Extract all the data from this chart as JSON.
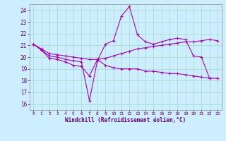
{
  "xlabel": "Windchill (Refroidissement éolien,°C)",
  "bg_color": "#cceeff",
  "grid_color": "#aaddcc",
  "line_color": "#aa00aa",
  "xlim": [
    -0.5,
    23.5
  ],
  "ylim": [
    15.5,
    24.5
  ],
  "yticks": [
    16,
    17,
    18,
    19,
    20,
    21,
    22,
    23,
    24
  ],
  "xticks": [
    0,
    1,
    2,
    3,
    4,
    5,
    6,
    7,
    8,
    9,
    10,
    11,
    12,
    13,
    14,
    15,
    16,
    17,
    18,
    19,
    20,
    21,
    22,
    23
  ],
  "xticklabels": [
    "0",
    "1",
    "2",
    "3",
    "4",
    "5",
    "6",
    "7",
    "8",
    "9",
    "10",
    "11",
    "12",
    "13",
    "14",
    "15",
    "16",
    "17",
    "18",
    "19",
    "20",
    "21",
    "22",
    "23"
  ],
  "line1_x": [
    0,
    1,
    2,
    3,
    4,
    5,
    6,
    7,
    8,
    9,
    10,
    11,
    12,
    13,
    14,
    15,
    16,
    17,
    18,
    19,
    20,
    21,
    22,
    23
  ],
  "line1_y": [
    21.1,
    20.6,
    19.9,
    19.8,
    19.6,
    19.3,
    19.2,
    18.4,
    19.8,
    19.3,
    19.1,
    19.0,
    19.0,
    19.0,
    18.8,
    18.8,
    18.7,
    18.6,
    18.6,
    18.5,
    18.4,
    18.3,
    18.2,
    18.2
  ],
  "line2_x": [
    0,
    1,
    2,
    3,
    4,
    5,
    6,
    7,
    8,
    9,
    10,
    11,
    12,
    13,
    14,
    15,
    16,
    17,
    18,
    19,
    20,
    21,
    22
  ],
  "line2_y": [
    21.1,
    20.6,
    20.1,
    20.0,
    19.8,
    19.7,
    19.6,
    16.3,
    19.7,
    21.1,
    21.4,
    23.5,
    24.3,
    21.9,
    21.3,
    21.1,
    21.3,
    21.5,
    21.6,
    21.5,
    20.1,
    20.0,
    18.2
  ],
  "line3_x": [
    0,
    1,
    2,
    3,
    4,
    5,
    6,
    7,
    8,
    9,
    10,
    11,
    12,
    13,
    14,
    15,
    16,
    17,
    18,
    19,
    20,
    21,
    22,
    23
  ],
  "line3_y": [
    21.1,
    20.7,
    20.3,
    20.2,
    20.1,
    20.0,
    19.9,
    19.8,
    19.8,
    19.9,
    20.1,
    20.3,
    20.5,
    20.7,
    20.8,
    20.9,
    21.0,
    21.1,
    21.2,
    21.3,
    21.3,
    21.4,
    21.5,
    21.4
  ]
}
